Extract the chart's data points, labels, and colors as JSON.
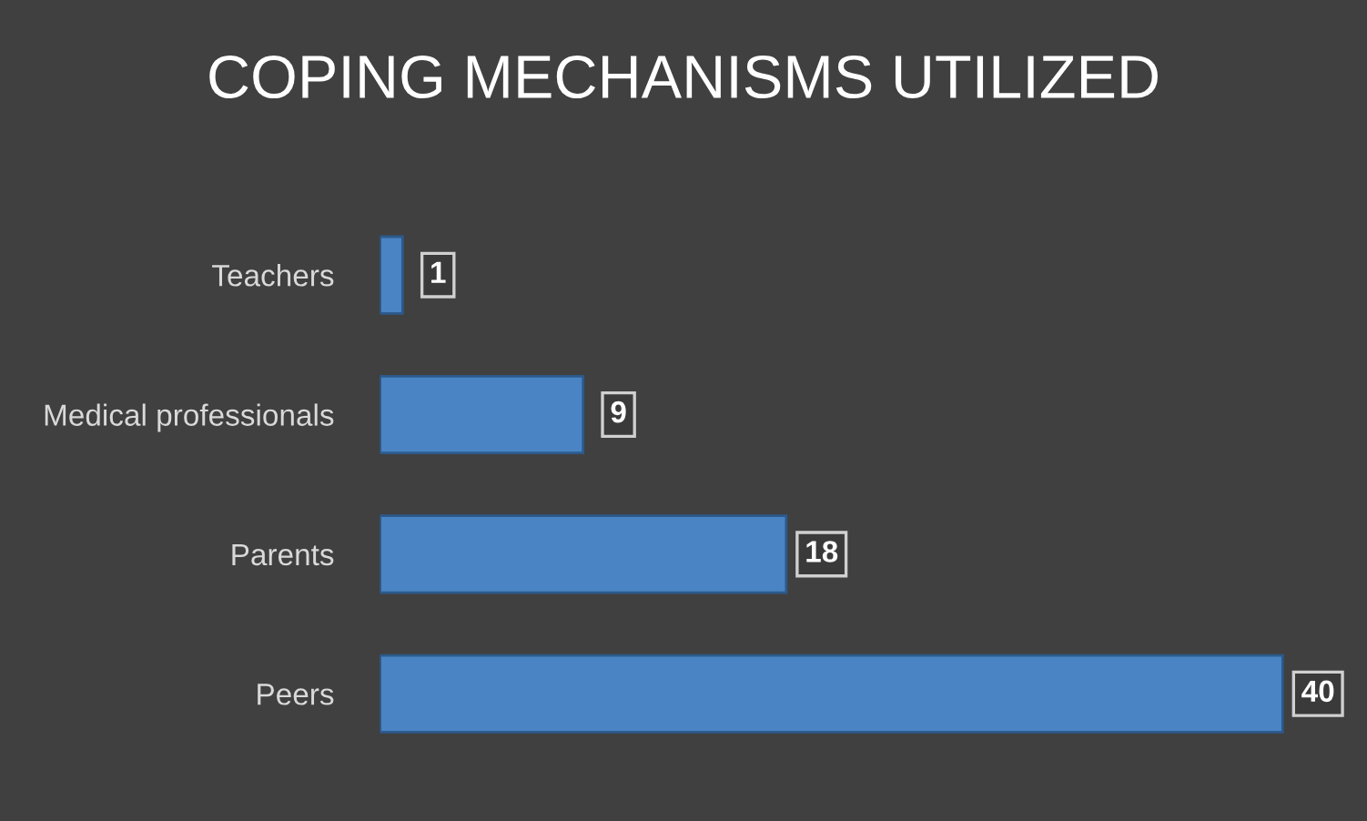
{
  "chart_data": {
    "type": "bar",
    "orientation": "horizontal",
    "title": "COPING MECHANISMS UTILIZED",
    "categories": [
      "Teachers",
      "Medical professionals",
      "Parents",
      "Peers"
    ],
    "values": [
      1,
      9,
      18,
      40
    ],
    "color": "#4a84c4",
    "data_labels": true,
    "grid": false,
    "legend": false
  }
}
